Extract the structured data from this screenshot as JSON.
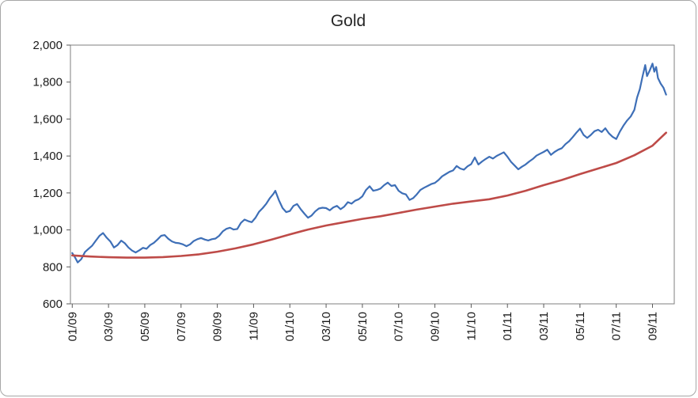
{
  "chart_data": {
    "type": "line",
    "title": "Gold",
    "xlabel": "",
    "ylabel": "",
    "grid": false,
    "legend": "none",
    "x_axis": {
      "range": [
        -0.1,
        33.2
      ],
      "tick_positions": [
        0,
        2,
        4,
        6,
        8,
        10,
        12,
        14,
        16,
        18,
        20,
        22,
        24,
        26,
        28,
        30,
        32
      ],
      "tick_labels": [
        "01/09",
        "03/09",
        "05/09",
        "07/09",
        "09/09",
        "11/09",
        "01/10",
        "03/10",
        "05/10",
        "07/10",
        "09/10",
        "11/10",
        "01/11",
        "03/11",
        "05/11",
        "07/11",
        "09/11"
      ],
      "label_rotation": -90
    },
    "y_axis": {
      "range": [
        600,
        2000
      ],
      "tick_interval": 200,
      "tick_values": [
        600,
        800,
        1000,
        1200,
        1400,
        1600,
        1800,
        2000
      ],
      "tick_labels": [
        "600",
        "800",
        "1,000",
        "1,200",
        "1,400",
        "1,600",
        "1,800",
        "2,000"
      ]
    },
    "style": {
      "plot_border_color": "#7f7f7f",
      "tick_color": "#595959",
      "label_color": "#1a1a1a",
      "background": "#ffffff"
    },
    "series": [
      {
        "id": "blue",
        "name": "blue-line",
        "color": "#3e6fb7",
        "width": 2.2,
        "points": [
          [
            0,
            875
          ],
          [
            0.15,
            852
          ],
          [
            0.3,
            824
          ],
          [
            0.5,
            842
          ],
          [
            0.7,
            880
          ],
          [
            0.9,
            898
          ],
          [
            1.1,
            915
          ],
          [
            1.3,
            942
          ],
          [
            1.5,
            968
          ],
          [
            1.7,
            983
          ],
          [
            1.9,
            958
          ],
          [
            2.1,
            938
          ],
          [
            2.3,
            905
          ],
          [
            2.5,
            918
          ],
          [
            2.7,
            942
          ],
          [
            2.9,
            928
          ],
          [
            3.1,
            905
          ],
          [
            3.3,
            888
          ],
          [
            3.5,
            878
          ],
          [
            3.7,
            890
          ],
          [
            3.9,
            903
          ],
          [
            4.1,
            898
          ],
          [
            4.3,
            918
          ],
          [
            4.5,
            930
          ],
          [
            4.7,
            948
          ],
          [
            4.9,
            968
          ],
          [
            5.1,
            972
          ],
          [
            5.3,
            952
          ],
          [
            5.5,
            938
          ],
          [
            5.7,
            930
          ],
          [
            5.9,
            928
          ],
          [
            6.1,
            922
          ],
          [
            6.3,
            912
          ],
          [
            6.5,
            922
          ],
          [
            6.7,
            940
          ],
          [
            6.9,
            950
          ],
          [
            7.1,
            956
          ],
          [
            7.3,
            948
          ],
          [
            7.5,
            943
          ],
          [
            7.7,
            950
          ],
          [
            7.9,
            953
          ],
          [
            8.1,
            968
          ],
          [
            8.3,
            992
          ],
          [
            8.5,
            1006
          ],
          [
            8.7,
            1012
          ],
          [
            8.9,
            1002
          ],
          [
            9.1,
            1005
          ],
          [
            9.3,
            1038
          ],
          [
            9.5,
            1056
          ],
          [
            9.7,
            1048
          ],
          [
            9.9,
            1042
          ],
          [
            10.1,
            1065
          ],
          [
            10.3,
            1098
          ],
          [
            10.5,
            1118
          ],
          [
            10.7,
            1142
          ],
          [
            10.9,
            1172
          ],
          [
            11.1,
            1196
          ],
          [
            11.2,
            1212
          ],
          [
            11.4,
            1160
          ],
          [
            11.6,
            1118
          ],
          [
            11.8,
            1096
          ],
          [
            12.0,
            1102
          ],
          [
            12.2,
            1130
          ],
          [
            12.4,
            1140
          ],
          [
            12.6,
            1112
          ],
          [
            12.8,
            1088
          ],
          [
            13.0,
            1066
          ],
          [
            13.2,
            1078
          ],
          [
            13.4,
            1100
          ],
          [
            13.6,
            1116
          ],
          [
            13.8,
            1120
          ],
          [
            14.0,
            1118
          ],
          [
            14.2,
            1106
          ],
          [
            14.4,
            1122
          ],
          [
            14.6,
            1130
          ],
          [
            14.8,
            1112
          ],
          [
            15.0,
            1126
          ],
          [
            15.2,
            1150
          ],
          [
            15.4,
            1142
          ],
          [
            15.6,
            1158
          ],
          [
            15.8,
            1166
          ],
          [
            16.0,
            1182
          ],
          [
            16.2,
            1216
          ],
          [
            16.4,
            1236
          ],
          [
            16.6,
            1212
          ],
          [
            16.8,
            1216
          ],
          [
            17.0,
            1224
          ],
          [
            17.2,
            1242
          ],
          [
            17.4,
            1256
          ],
          [
            17.6,
            1238
          ],
          [
            17.8,
            1242
          ],
          [
            18.0,
            1212
          ],
          [
            18.2,
            1198
          ],
          [
            18.4,
            1192
          ],
          [
            18.6,
            1162
          ],
          [
            18.8,
            1172
          ],
          [
            19.0,
            1192
          ],
          [
            19.2,
            1216
          ],
          [
            19.4,
            1228
          ],
          [
            19.6,
            1238
          ],
          [
            19.8,
            1248
          ],
          [
            20.0,
            1254
          ],
          [
            20.2,
            1270
          ],
          [
            20.4,
            1290
          ],
          [
            20.6,
            1302
          ],
          [
            20.8,
            1314
          ],
          [
            21.0,
            1322
          ],
          [
            21.2,
            1346
          ],
          [
            21.4,
            1332
          ],
          [
            21.6,
            1326
          ],
          [
            21.8,
            1344
          ],
          [
            22.0,
            1356
          ],
          [
            22.2,
            1392
          ],
          [
            22.4,
            1354
          ],
          [
            22.6,
            1370
          ],
          [
            22.8,
            1384
          ],
          [
            23.0,
            1396
          ],
          [
            23.2,
            1386
          ],
          [
            23.4,
            1400
          ],
          [
            23.6,
            1410
          ],
          [
            23.8,
            1420
          ],
          [
            24.0,
            1396
          ],
          [
            24.2,
            1368
          ],
          [
            24.4,
            1348
          ],
          [
            24.6,
            1328
          ],
          [
            24.8,
            1342
          ],
          [
            25.0,
            1354
          ],
          [
            25.2,
            1370
          ],
          [
            25.4,
            1384
          ],
          [
            25.6,
            1402
          ],
          [
            25.8,
            1412
          ],
          [
            26.0,
            1422
          ],
          [
            26.2,
            1434
          ],
          [
            26.4,
            1406
          ],
          [
            26.6,
            1422
          ],
          [
            26.8,
            1434
          ],
          [
            27.0,
            1442
          ],
          [
            27.2,
            1464
          ],
          [
            27.4,
            1480
          ],
          [
            27.6,
            1502
          ],
          [
            27.8,
            1526
          ],
          [
            28.0,
            1548
          ],
          [
            28.2,
            1514
          ],
          [
            28.4,
            1498
          ],
          [
            28.6,
            1514
          ],
          [
            28.8,
            1534
          ],
          [
            29.0,
            1542
          ],
          [
            29.2,
            1530
          ],
          [
            29.4,
            1550
          ],
          [
            29.6,
            1522
          ],
          [
            29.8,
            1504
          ],
          [
            30.0,
            1492
          ],
          [
            30.2,
            1532
          ],
          [
            30.4,
            1564
          ],
          [
            30.6,
            1592
          ],
          [
            30.8,
            1614
          ],
          [
            31.0,
            1650
          ],
          [
            31.15,
            1716
          ],
          [
            31.3,
            1762
          ],
          [
            31.45,
            1830
          ],
          [
            31.6,
            1892
          ],
          [
            31.7,
            1832
          ],
          [
            31.85,
            1864
          ],
          [
            32.0,
            1900
          ],
          [
            32.1,
            1856
          ],
          [
            32.2,
            1882
          ],
          [
            32.3,
            1822
          ],
          [
            32.45,
            1792
          ],
          [
            32.6,
            1770
          ],
          [
            32.75,
            1732
          ]
        ]
      },
      {
        "id": "red",
        "name": "red-line",
        "color": "#be4b48",
        "width": 2.6,
        "points": [
          [
            0,
            862
          ],
          [
            1,
            856
          ],
          [
            2,
            852
          ],
          [
            3,
            850
          ],
          [
            4,
            850
          ],
          [
            5,
            853
          ],
          [
            6,
            859
          ],
          [
            7,
            868
          ],
          [
            8,
            882
          ],
          [
            9,
            900
          ],
          [
            10,
            922
          ],
          [
            11,
            948
          ],
          [
            12,
            976
          ],
          [
            13,
            1002
          ],
          [
            14,
            1024
          ],
          [
            15,
            1042
          ],
          [
            16,
            1060
          ],
          [
            17,
            1074
          ],
          [
            18,
            1092
          ],
          [
            19,
            1110
          ],
          [
            20,
            1126
          ],
          [
            21,
            1142
          ],
          [
            22,
            1154
          ],
          [
            23,
            1166
          ],
          [
            24,
            1186
          ],
          [
            25,
            1212
          ],
          [
            26,
            1242
          ],
          [
            27,
            1270
          ],
          [
            28,
            1302
          ],
          [
            29,
            1332
          ],
          [
            30,
            1362
          ],
          [
            31,
            1404
          ],
          [
            32,
            1456
          ],
          [
            32.75,
            1526
          ]
        ]
      }
    ]
  }
}
